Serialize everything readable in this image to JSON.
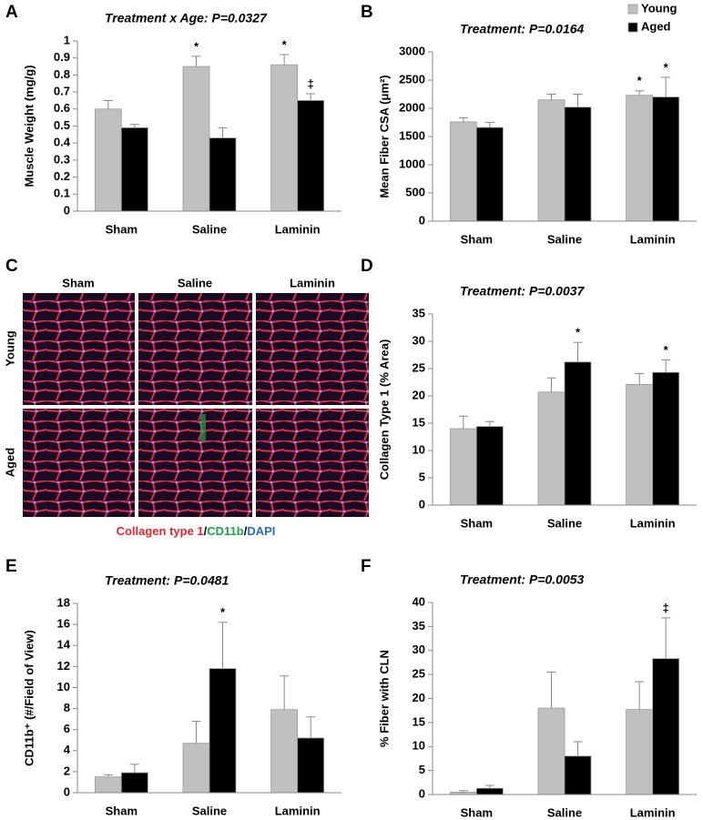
{
  "chart_data": [
    {
      "type": "bar",
      "panel": "A",
      "title": "Treatment x Age: P=0.0327",
      "y_label": "Muscle Weight (mg/g)",
      "categories": [
        "Sham",
        "Saline",
        "Laminin"
      ],
      "series": [
        {
          "color": "#c0c0c0",
          "values": [
            0.6,
            0.85,
            0.86
          ],
          "errors": [
            0.05,
            0.06,
            0.06
          ],
          "markers": [
            null,
            "*",
            "*"
          ]
        },
        {
          "color": "#000000",
          "values": [
            0.49,
            0.43,
            0.65
          ],
          "errors": [
            0.02,
            0.06,
            0.04
          ],
          "markers": [
            null,
            null,
            "‡"
          ]
        }
      ],
      "ylim": [
        0,
        1
      ],
      "yticks": [
        0,
        0.1,
        0.2,
        0.3,
        0.4,
        0.5,
        0.6,
        0.7,
        0.8,
        0.9,
        1
      ]
    },
    {
      "type": "bar",
      "panel": "B",
      "title": "Treatment: P=0.0164",
      "y_label": "Mean Fiber CSA (μm²)",
      "categories": [
        "Sham",
        "Saline",
        "Laminin"
      ],
      "legend": "upper right",
      "series": [
        {
          "name": "Young",
          "color": "#c0c0c0",
          "values": [
            1760,
            2150,
            2230
          ],
          "errors": [
            70,
            100,
            80
          ],
          "markers": [
            null,
            null,
            "*"
          ]
        },
        {
          "name": "Aged",
          "color": "#000000",
          "values": [
            1660,
            2020,
            2200
          ],
          "errors": [
            90,
            230,
            350
          ],
          "markers": [
            null,
            null,
            "*"
          ]
        }
      ],
      "ylim": [
        0,
        3000
      ],
      "yticks": [
        0,
        500,
        1000,
        1500,
        2000,
        2500,
        3000
      ]
    },
    {
      "type": "bar",
      "panel": "D",
      "title": "Treatment: P=0.0037",
      "y_label": "Collagen Type 1 (% Area)",
      "categories": [
        "Sham",
        "Saline",
        "Laminin"
      ],
      "series": [
        {
          "color": "#c0c0c0",
          "values": [
            14.0,
            20.7,
            22.1
          ],
          "errors": [
            2.3,
            2.6,
            2.0
          ],
          "markers": [
            null,
            null,
            null
          ]
        },
        {
          "color": "#000000",
          "values": [
            14.4,
            26.2,
            24.3
          ],
          "errors": [
            0.9,
            3.6,
            2.3
          ],
          "markers": [
            null,
            "*",
            "*"
          ]
        }
      ],
      "ylim": [
        0,
        35
      ],
      "yticks": [
        0,
        5,
        10,
        15,
        20,
        25,
        30,
        35
      ]
    },
    {
      "type": "bar",
      "panel": "E",
      "title": "Treatment: P=0.0481",
      "y_label": "CD11b⁺ (#/Field of View)",
      "categories": [
        "Sham",
        "Saline",
        "Laminin"
      ],
      "series": [
        {
          "color": "#c0c0c0",
          "values": [
            1.5,
            4.7,
            7.9
          ],
          "errors": [
            0.2,
            2.1,
            3.2
          ],
          "markers": [
            null,
            null,
            null
          ]
        },
        {
          "color": "#000000",
          "values": [
            1.9,
            11.8,
            5.2
          ],
          "errors": [
            0.8,
            4.4,
            2.0
          ],
          "markers": [
            null,
            "*",
            null
          ]
        }
      ],
      "ylim": [
        0,
        18
      ],
      "yticks": [
        0,
        2,
        4,
        6,
        8,
        10,
        12,
        14,
        16,
        18
      ]
    },
    {
      "type": "bar",
      "panel": "F",
      "title": "Treatment: P=0.0053",
      "y_label": "% Fiber with CLN",
      "categories": [
        "Sham",
        "Saline",
        "Laminin"
      ],
      "series": [
        {
          "color": "#c0c0c0",
          "values": [
            0.5,
            18,
            17.7
          ],
          "errors": [
            0.3,
            7.5,
            5.8
          ],
          "markers": [
            null,
            null,
            null
          ]
        },
        {
          "color": "#000000",
          "values": [
            1.3,
            8,
            28.3
          ],
          "errors": [
            0.6,
            3,
            8.5
          ],
          "markers": [
            null,
            null,
            "‡"
          ]
        }
      ],
      "ylim": [
        0,
        40
      ],
      "yticks": [
        0,
        5,
        10,
        15,
        20,
        25,
        30,
        35,
        40
      ]
    }
  ],
  "image_panel": {
    "panel": "C",
    "columns": [
      "Sham",
      "Saline",
      "Laminin"
    ],
    "rows": [
      "Young",
      "Aged"
    ],
    "caption": [
      "Collagen type 1",
      "/",
      "CD11b",
      "/",
      "DAPI"
    ]
  }
}
